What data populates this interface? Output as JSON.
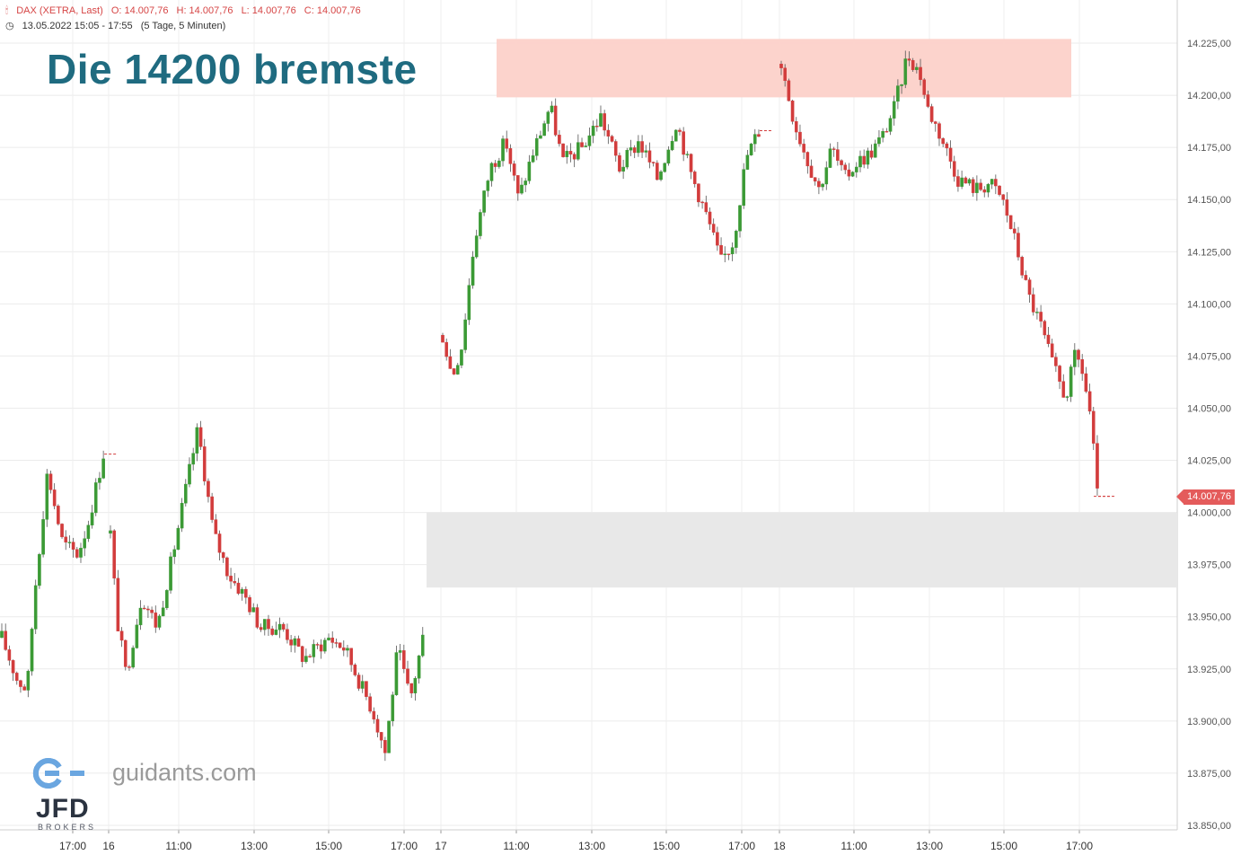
{
  "header": {
    "symbol": "DAX (XETRA, Last)",
    "open": "O: 14.007,76",
    "high": "H: 14.007,76",
    "low": "L: 14.007,76",
    "close": "C: 14.007,76",
    "period": "13.05.2022 15:05 - 17:55",
    "range": "(5 Tage, 5 Minuten)",
    "header_color": "#d64545"
  },
  "annotation_title": "Die 14200 bremste",
  "branding": {
    "site": "guidants.com",
    "broker": "JFD",
    "broker_sub": "BROKERS"
  },
  "last_price_label": "14.007,76",
  "colors": {
    "up": "#3b9a35",
    "down": "#d23c3c",
    "resistance_zone": "#fcd1c9",
    "support_zone": "#e8e8e8",
    "title": "#1f6b80"
  },
  "chart_data": {
    "type": "candlestick",
    "title": "",
    "ylim": [
      13845,
      14237
    ],
    "y_ticks": [
      13850,
      13875,
      13900,
      13925,
      13950,
      13975,
      14000,
      14025,
      14050,
      14075,
      14100,
      14125,
      14150,
      14175,
      14200,
      14225
    ],
    "y_tick_labels": [
      "13.850,00",
      "13.875,00",
      "13.900,00",
      "13.925,00",
      "13.950,00",
      "13.975,00",
      "14.000,00",
      "14.025,00",
      "14.050,00",
      "14.075,00",
      "14.100,00",
      "14.125,00",
      "14.150,00",
      "14.175,00",
      "14.200,00",
      "14.225,00"
    ],
    "x_tick_labels": [
      "17:00",
      "16",
      "11:00",
      "13:00",
      "15:00",
      "17:00",
      "17",
      "11:00",
      "13:00",
      "15:00",
      "17:00",
      "18",
      "11:00",
      "13:00",
      "15:00",
      "17:00"
    ],
    "zones": [
      {
        "name": "resistance",
        "from": 14199,
        "to": 14227
      },
      {
        "name": "support",
        "from": 13964,
        "to": 14000
      }
    ],
    "last_price": 14007.76,
    "sessions": [
      {
        "date": "13.05.2022",
        "path": [
          [
            0,
            13940
          ],
          [
            0.15,
            13920
          ],
          [
            0.25,
            13915
          ],
          [
            0.32,
            13960
          ],
          [
            0.45,
            14020
          ],
          [
            0.6,
            13985
          ],
          [
            0.75,
            13980
          ],
          [
            0.85,
            13995
          ],
          [
            1.0,
            14028
          ]
        ],
        "close_extension": 14028
      },
      {
        "date": "16.05.2022",
        "path": [
          [
            0,
            13990
          ],
          [
            0.02,
            13950
          ],
          [
            0.05,
            13922
          ],
          [
            0.1,
            13960
          ],
          [
            0.15,
            13945
          ],
          [
            0.2,
            13980
          ],
          [
            0.28,
            14040
          ],
          [
            0.33,
            13990
          ],
          [
            0.38,
            13970
          ],
          [
            0.43,
            13960
          ],
          [
            0.48,
            13945
          ],
          [
            0.55,
            13945
          ],
          [
            0.62,
            13930
          ],
          [
            0.7,
            13940
          ],
          [
            0.75,
            13935
          ],
          [
            0.8,
            13918
          ],
          [
            0.84,
            13905
          ],
          [
            0.88,
            13885
          ],
          [
            0.92,
            13935
          ],
          [
            0.96,
            13910
          ],
          [
            1.0,
            13940
          ]
        ]
      },
      {
        "date": "17.05.2022",
        "path": [
          [
            0,
            14085
          ],
          [
            0.03,
            14065
          ],
          [
            0.06,
            14080
          ],
          [
            0.1,
            14130
          ],
          [
            0.15,
            14165
          ],
          [
            0.2,
            14178
          ],
          [
            0.24,
            14150
          ],
          [
            0.28,
            14170
          ],
          [
            0.34,
            14195
          ],
          [
            0.38,
            14168
          ],
          [
            0.44,
            14175
          ],
          [
            0.5,
            14190
          ],
          [
            0.56,
            14165
          ],
          [
            0.62,
            14178
          ],
          [
            0.68,
            14160
          ],
          [
            0.74,
            14188
          ],
          [
            0.78,
            14165
          ],
          [
            0.84,
            14140
          ],
          [
            0.88,
            14120
          ],
          [
            0.92,
            14130
          ],
          [
            0.96,
            14170
          ],
          [
            1.0,
            14183
          ]
        ],
        "close_extension": 14183
      },
      {
        "date": "18.05.2022",
        "path": [
          [
            0,
            14215
          ],
          [
            0.04,
            14188
          ],
          [
            0.08,
            14170
          ],
          [
            0.12,
            14155
          ],
          [
            0.16,
            14175
          ],
          [
            0.2,
            14160
          ],
          [
            0.24,
            14168
          ],
          [
            0.28,
            14172
          ],
          [
            0.32,
            14180
          ],
          [
            0.36,
            14195
          ],
          [
            0.4,
            14220
          ],
          [
            0.44,
            14210
          ],
          [
            0.46,
            14195
          ],
          [
            0.5,
            14182
          ],
          [
            0.56,
            14160
          ],
          [
            0.62,
            14155
          ],
          [
            0.66,
            14158
          ],
          [
            0.7,
            14150
          ],
          [
            0.74,
            14130
          ],
          [
            0.78,
            14105
          ],
          [
            0.82,
            14090
          ],
          [
            0.86,
            14070
          ],
          [
            0.9,
            14055
          ],
          [
            0.93,
            14075
          ],
          [
            0.95,
            14070
          ],
          [
            0.98,
            14045
          ],
          [
            1.0,
            14007.76
          ]
        ],
        "close_extension": 14007.76
      }
    ]
  }
}
